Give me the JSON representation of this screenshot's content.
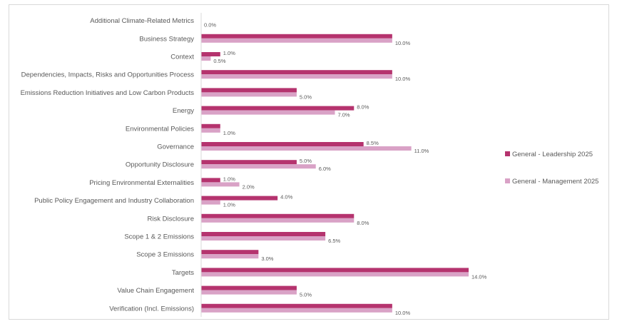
{
  "chart_data": {
    "type": "bar",
    "orientation": "horizontal",
    "categories": [
      "Additional Climate-Related Metrics",
      "Business Strategy",
      "Context",
      "Dependencies, Impacts, Risks and Opportunities Process",
      "Emissions Reduction Initiatives and Low Carbon Products",
      "Energy",
      "Environmental Policies",
      "Governance",
      "Opportunity Disclosure",
      "Pricing Environmental Externalities",
      "Public Policy Engagement and Industry Collaboration",
      "Risk Disclosure",
      "Scope 1 & 2 Emissions",
      "Scope 3 Emissions",
      "Targets",
      "Value Chain Engagement",
      "Verification (Incl. Emissions)"
    ],
    "series": [
      {
        "name": "General - Leadership 2025",
        "color": "#b5336e",
        "values": [
          null,
          10.0,
          1.0,
          10.0,
          5.0,
          8.0,
          1.0,
          8.5,
          5.0,
          1.0,
          4.0,
          8.0,
          6.5,
          3.0,
          14.0,
          5.0,
          10.0
        ],
        "labels": [
          "",
          "",
          "1.0%",
          "",
          "",
          "8.0%",
          "",
          "8.5%",
          "5.0%",
          "1.0%",
          "4.0%",
          "",
          "",
          "",
          "",
          "",
          ""
        ]
      },
      {
        "name": "General - Management 2025",
        "color": "#d9a2c6",
        "values": [
          0.0,
          10.0,
          0.5,
          10.0,
          5.0,
          7.0,
          1.0,
          11.0,
          6.0,
          2.0,
          1.0,
          8.0,
          6.5,
          3.0,
          14.0,
          5.0,
          10.0
        ],
        "labels": [
          "0.0%",
          "10.0%",
          "0.5%",
          "10.0%",
          "5.0%",
          "7.0%",
          "1.0%",
          "11.0%",
          "6.0%",
          "2.0%",
          "1.0%",
          "8.0%",
          "6.5%",
          "3.0%",
          "14.0%",
          "5.0%",
          "10.0%"
        ]
      }
    ],
    "xlim": [
      0,
      14.0
    ],
    "grid": false,
    "legend_position": "right"
  }
}
